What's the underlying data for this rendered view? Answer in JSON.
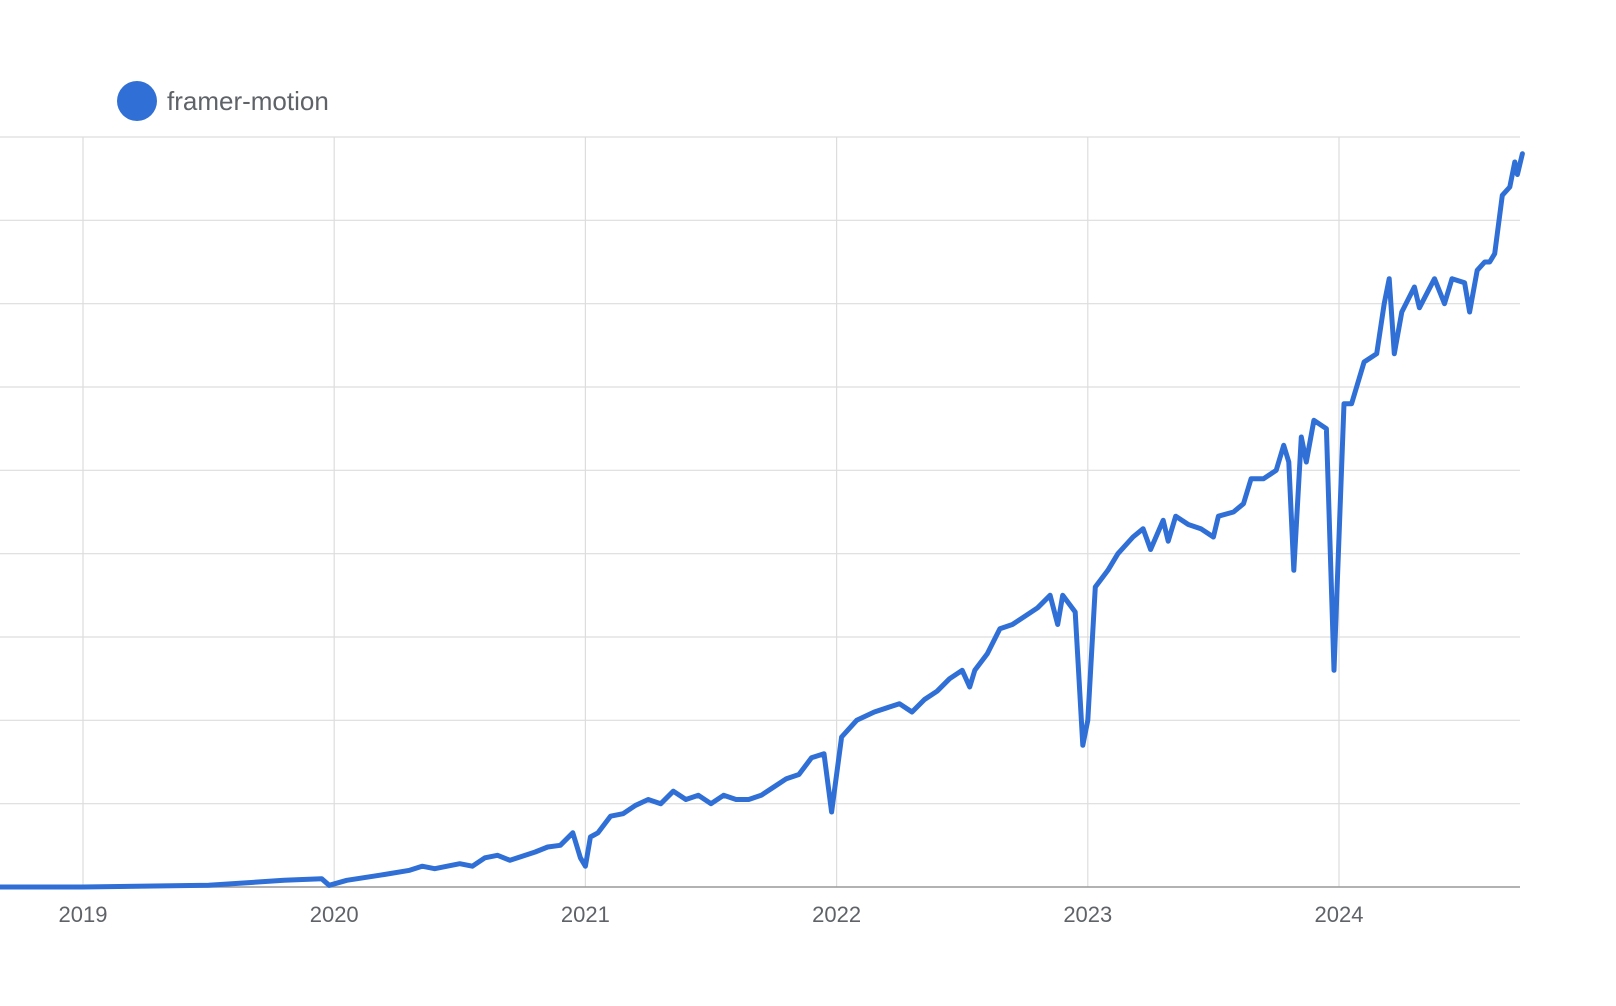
{
  "colors": {
    "series": "#2f6fd6",
    "grid": "#dddddd",
    "axis": "#999999",
    "text": "#5f6368"
  },
  "legend": {
    "position": "top-left",
    "marker_icon": "circle-marker-icon"
  },
  "chart_data": {
    "type": "line",
    "title": "",
    "xlabel": "",
    "ylabel": "",
    "grid": true,
    "y_axis_labels_visible": false,
    "xlim": [
      2018.67,
      2024.73
    ],
    "ylim": [
      0,
      9
    ],
    "x_ticks": [
      {
        "value": 2019,
        "label": "2019"
      },
      {
        "value": 2020,
        "label": "2020"
      },
      {
        "value": 2021,
        "label": "2021"
      },
      {
        "value": 2022,
        "label": "2022"
      },
      {
        "value": 2023,
        "label": "2023"
      },
      {
        "value": 2024,
        "label": "2024"
      }
    ],
    "y_gridlines": [
      0,
      1,
      2,
      3,
      4,
      5,
      6,
      7,
      8,
      9
    ],
    "series": [
      {
        "name": "framer-motion",
        "points": [
          [
            2018.67,
            0.0
          ],
          [
            2019.0,
            0.0
          ],
          [
            2019.5,
            0.02
          ],
          [
            2019.8,
            0.08
          ],
          [
            2019.95,
            0.1
          ],
          [
            2019.98,
            0.02
          ],
          [
            2020.05,
            0.08
          ],
          [
            2020.2,
            0.15
          ],
          [
            2020.3,
            0.2
          ],
          [
            2020.35,
            0.25
          ],
          [
            2020.4,
            0.22
          ],
          [
            2020.45,
            0.25
          ],
          [
            2020.5,
            0.28
          ],
          [
            2020.55,
            0.25
          ],
          [
            2020.6,
            0.35
          ],
          [
            2020.65,
            0.38
          ],
          [
            2020.7,
            0.32
          ],
          [
            2020.8,
            0.42
          ],
          [
            2020.85,
            0.48
          ],
          [
            2020.9,
            0.5
          ],
          [
            2020.95,
            0.65
          ],
          [
            2020.98,
            0.35
          ],
          [
            2021.0,
            0.25
          ],
          [
            2021.02,
            0.6
          ],
          [
            2021.05,
            0.65
          ],
          [
            2021.1,
            0.85
          ],
          [
            2021.15,
            0.88
          ],
          [
            2021.2,
            0.98
          ],
          [
            2021.25,
            1.05
          ],
          [
            2021.3,
            1.0
          ],
          [
            2021.35,
            1.15
          ],
          [
            2021.4,
            1.05
          ],
          [
            2021.45,
            1.1
          ],
          [
            2021.5,
            1.0
          ],
          [
            2021.55,
            1.1
          ],
          [
            2021.6,
            1.05
          ],
          [
            2021.65,
            1.05
          ],
          [
            2021.7,
            1.1
          ],
          [
            2021.75,
            1.2
          ],
          [
            2021.8,
            1.3
          ],
          [
            2021.85,
            1.35
          ],
          [
            2021.9,
            1.55
          ],
          [
            2021.95,
            1.6
          ],
          [
            2021.98,
            0.9
          ],
          [
            2022.02,
            1.8
          ],
          [
            2022.08,
            2.0
          ],
          [
            2022.15,
            2.1
          ],
          [
            2022.25,
            2.2
          ],
          [
            2022.3,
            2.1
          ],
          [
            2022.35,
            2.25
          ],
          [
            2022.4,
            2.35
          ],
          [
            2022.45,
            2.5
          ],
          [
            2022.5,
            2.6
          ],
          [
            2022.53,
            2.4
          ],
          [
            2022.55,
            2.6
          ],
          [
            2022.6,
            2.8
          ],
          [
            2022.65,
            3.1
          ],
          [
            2022.7,
            3.15
          ],
          [
            2022.75,
            3.25
          ],
          [
            2022.8,
            3.35
          ],
          [
            2022.85,
            3.5
          ],
          [
            2022.88,
            3.15
          ],
          [
            2022.9,
            3.5
          ],
          [
            2022.95,
            3.3
          ],
          [
            2022.98,
            1.7
          ],
          [
            2023.0,
            2.0
          ],
          [
            2023.03,
            3.6
          ],
          [
            2023.08,
            3.8
          ],
          [
            2023.12,
            4.0
          ],
          [
            2023.18,
            4.2
          ],
          [
            2023.22,
            4.3
          ],
          [
            2023.25,
            4.05
          ],
          [
            2023.3,
            4.4
          ],
          [
            2023.32,
            4.15
          ],
          [
            2023.35,
            4.45
          ],
          [
            2023.4,
            4.35
          ],
          [
            2023.45,
            4.3
          ],
          [
            2023.5,
            4.2
          ],
          [
            2023.52,
            4.45
          ],
          [
            2023.58,
            4.5
          ],
          [
            2023.62,
            4.6
          ],
          [
            2023.65,
            4.9
          ],
          [
            2023.7,
            4.9
          ],
          [
            2023.75,
            5.0
          ],
          [
            2023.78,
            5.3
          ],
          [
            2023.8,
            5.1
          ],
          [
            2023.82,
            3.8
          ],
          [
            2023.85,
            5.4
          ],
          [
            2023.87,
            5.1
          ],
          [
            2023.9,
            5.6
          ],
          [
            2023.95,
            5.5
          ],
          [
            2023.98,
            2.6
          ],
          [
            2024.02,
            5.8
          ],
          [
            2024.05,
            5.8
          ],
          [
            2024.1,
            6.3
          ],
          [
            2024.15,
            6.4
          ],
          [
            2024.18,
            7.0
          ],
          [
            2024.2,
            7.3
          ],
          [
            2024.22,
            6.4
          ],
          [
            2024.25,
            6.9
          ],
          [
            2024.3,
            7.2
          ],
          [
            2024.32,
            6.95
          ],
          [
            2024.38,
            7.3
          ],
          [
            2024.42,
            7.0
          ],
          [
            2024.45,
            7.3
          ],
          [
            2024.5,
            7.25
          ],
          [
            2024.52,
            6.9
          ],
          [
            2024.55,
            7.4
          ],
          [
            2024.58,
            7.5
          ],
          [
            2024.6,
            7.5
          ],
          [
            2024.62,
            7.6
          ],
          [
            2024.65,
            8.3
          ],
          [
            2024.68,
            8.4
          ],
          [
            2024.7,
            8.7
          ],
          [
            2024.71,
            8.55
          ],
          [
            2024.73,
            8.8
          ]
        ]
      }
    ]
  }
}
